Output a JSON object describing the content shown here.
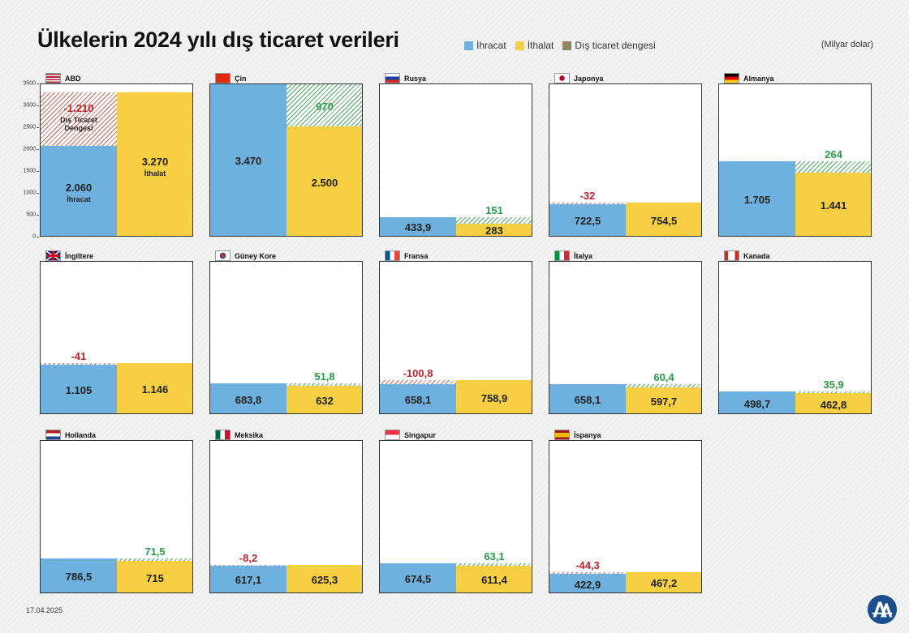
{
  "title": "Ülkelerin 2024 yılı dış ticaret verileri",
  "legend": [
    {
      "label": "İhracat",
      "color": "#6eb0de"
    },
    {
      "label": "İthalat",
      "color": "#f6cf43"
    },
    {
      "label": "Dış ticaret dengesi",
      "color": "hatched"
    }
  ],
  "unit": "(Milyar dolar)",
  "date": "17.04.2025",
  "logo": "aa-logo",
  "chart_data": {
    "type": "bar",
    "ylim": [
      0,
      3500
    ],
    "yticks": [
      "3500",
      "3000",
      "2500",
      "2000",
      "1500",
      "1000",
      "500",
      "0"
    ],
    "countries": [
      {
        "name": "ABD",
        "flag": "us-flag",
        "export": 2060,
        "import": 3270,
        "balance": -1210,
        "export_label": "2.060",
        "import_label": "3.270",
        "balance_label": "-1.210",
        "export_sub": "İhracat",
        "import_sub": "İthalat",
        "balance_sub": "Dış Ticaret Dengesi"
      },
      {
        "name": "Çin",
        "flag": "cn-flag",
        "export": 3470,
        "import": 2500,
        "balance": 970,
        "export_label": "3.470",
        "import_label": "2.500",
        "balance_label": "970"
      },
      {
        "name": "Rusya",
        "flag": "ru-flag",
        "export": 433.9,
        "import": 283,
        "balance": 151,
        "export_label": "433,9",
        "import_label": "283",
        "balance_label": "151"
      },
      {
        "name": "Japonya",
        "flag": "jp-flag",
        "export": 722.5,
        "import": 754.5,
        "balance": -32,
        "export_label": "722,5",
        "import_label": "754,5",
        "balance_label": "-32"
      },
      {
        "name": "Almanya",
        "flag": "de-flag",
        "export": 1705,
        "import": 1441,
        "balance": 264,
        "export_label": "1.705",
        "import_label": "1.441",
        "balance_label": "264"
      },
      {
        "name": "İngiltere",
        "flag": "gb-flag",
        "export": 1105,
        "import": 1146,
        "balance": -41,
        "export_label": "1.105",
        "import_label": "1.146",
        "balance_label": "-41"
      },
      {
        "name": "Güney Kore",
        "flag": "kr-flag",
        "export": 683.8,
        "import": 632,
        "balance": 51.8,
        "export_label": "683,8",
        "import_label": "632",
        "balance_label": "51,8"
      },
      {
        "name": "Fransa",
        "flag": "fr-flag",
        "export": 658.1,
        "import": 758.9,
        "balance": -100.8,
        "export_label": "658,1",
        "import_label": "758,9",
        "balance_label": "-100,8"
      },
      {
        "name": "İtalya",
        "flag": "it-flag",
        "export": 658.1,
        "import": 597.7,
        "balance": 60.4,
        "export_label": "658,1",
        "import_label": "597,7",
        "balance_label": "60,4"
      },
      {
        "name": "Kanada",
        "flag": "ca-flag",
        "export": 498.7,
        "import": 462.8,
        "balance": 35.9,
        "export_label": "498,7",
        "import_label": "462,8",
        "balance_label": "35,9"
      },
      {
        "name": "Hollanda",
        "flag": "nl-flag",
        "export": 786.5,
        "import": 715,
        "balance": 71.5,
        "export_label": "786,5",
        "import_label": "715",
        "balance_label": "71,5"
      },
      {
        "name": "Meksika",
        "flag": "mx-flag",
        "export": 617.1,
        "import": 625.3,
        "balance": -8.2,
        "export_label": "617,1",
        "import_label": "625,3",
        "balance_label": "-8,2"
      },
      {
        "name": "Singapur",
        "flag": "sg-flag",
        "export": 674.5,
        "import": 611.4,
        "balance": 63.1,
        "export_label": "674,5",
        "import_label": "611,4",
        "balance_label": "63,1"
      },
      {
        "name": "İspanya",
        "flag": "es-flag",
        "export": 422.9,
        "import": 467.2,
        "balance": -44.3,
        "export_label": "422,9",
        "import_label": "467,2",
        "balance_label": "-44,3"
      }
    ]
  }
}
